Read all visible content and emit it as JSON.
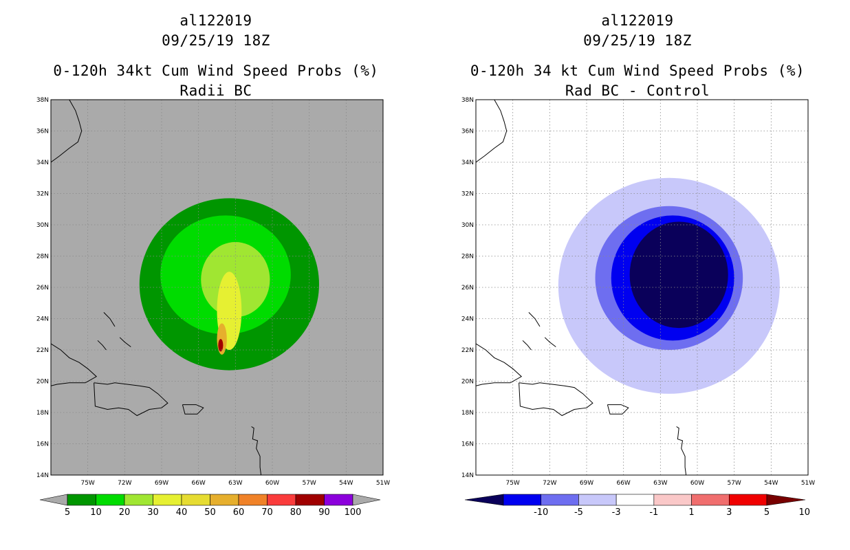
{
  "chart_data": [
    {
      "type": "heatmap",
      "storm_id": "al122019",
      "date": "09/25/19 18Z",
      "title": "0-120h 34kt Cum Wind Speed Probs (%)",
      "subtitle": "Radii BC",
      "xlim": [
        -78,
        -51
      ],
      "ylim": [
        14,
        38
      ],
      "x_ticks": [
        "75W",
        "72W",
        "69W",
        "66W",
        "63W",
        "60W",
        "57W",
        "54W",
        "51W"
      ],
      "y_ticks": [
        "14N",
        "16N",
        "18N",
        "20N",
        "22N",
        "24N",
        "26N",
        "28N",
        "30N",
        "32N",
        "34N",
        "36N",
        "38N"
      ],
      "background_color": "#aaaaaa",
      "colorbar": {
        "labels": [
          "5",
          "10",
          "20",
          "30",
          "40",
          "50",
          "60",
          "70",
          "80",
          "90",
          "100"
        ],
        "colors": [
          "#009600",
          "#00dc00",
          "#a0e632",
          "#e6f032",
          "#e6dc32",
          "#e6af2d",
          "#f08228",
          "#fa3c3c",
          "#a00000",
          "#8c00dc"
        ]
      },
      "contours": [
        {
          "level": 5,
          "color": "#009600",
          "center": [
            -63.5,
            26.2
          ],
          "radius_x": 7.3,
          "radius_y": 5.5
        },
        {
          "level": 10,
          "color": "#00dc00",
          "center": [
            -63.8,
            26.8
          ],
          "radius_x": 5.3,
          "radius_y": 3.8
        },
        {
          "level": 20,
          "color": "#a0e632",
          "center": [
            -63.0,
            26.5
          ],
          "radius_x": 2.8,
          "radius_y": 2.4
        },
        {
          "level": 30,
          "color": "#e6f032",
          "center": [
            -63.5,
            24.5
          ],
          "radius_x": 1.0,
          "radius_y": 2.5
        },
        {
          "level": 50,
          "color": "#e6af2d",
          "center": [
            -64.1,
            22.7
          ],
          "radius_x": 0.4,
          "radius_y": 1.0
        },
        {
          "level": 80,
          "color": "#a00000",
          "center": [
            -64.2,
            22.3
          ],
          "radius_x": 0.2,
          "radius_y": 0.4
        }
      ]
    },
    {
      "type": "heatmap",
      "storm_id": "al122019",
      "date": "09/25/19 18Z",
      "title": "0-120h 34 kt Cum Wind Speed Probs (%)",
      "subtitle": "Rad BC - Control",
      "xlim": [
        -78,
        -51
      ],
      "ylim": [
        14,
        38
      ],
      "x_ticks": [
        "75W",
        "72W",
        "69W",
        "66W",
        "63W",
        "60W",
        "57W",
        "54W",
        "51W"
      ],
      "y_ticks": [
        "14N",
        "16N",
        "18N",
        "20N",
        "22N",
        "24N",
        "26N",
        "28N",
        "30N",
        "32N",
        "34N",
        "36N",
        "38N"
      ],
      "background_color": "#ffffff",
      "colorbar": {
        "labels": [
          "-10",
          "-5",
          "-3",
          "-1",
          "1",
          "3",
          "5",
          "10"
        ],
        "colors": [
          "#0a005a",
          "#0000f0",
          "#6e6ef0",
          "#c8c8fa",
          "#ffffff",
          "#fac8c8",
          "#f06e6e",
          "#f00000",
          "#780000"
        ]
      },
      "contours": [
        {
          "level": -1,
          "color": "#c8c8fa",
          "center": [
            -62.3,
            26.1
          ],
          "radius_x": 9.0,
          "radius_y": 6.9
        },
        {
          "level": -3,
          "color": "#6e6ef0",
          "center": [
            -62.3,
            26.6
          ],
          "radius_x": 6.0,
          "radius_y": 4.6
        },
        {
          "level": -5,
          "color": "#0000f0",
          "center": [
            -62.0,
            26.6
          ],
          "radius_x": 5.0,
          "radius_y": 4.0
        },
        {
          "level": -10,
          "color": "#0a005a",
          "center": [
            -61.5,
            26.8
          ],
          "radius_x": 4.0,
          "radius_y": 3.4
        }
      ]
    }
  ]
}
